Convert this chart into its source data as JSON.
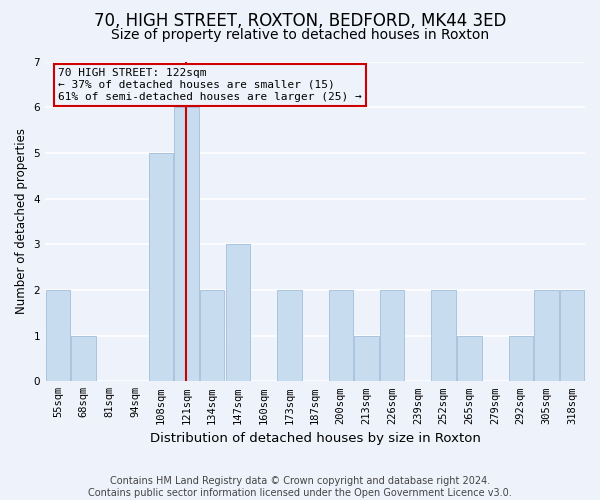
{
  "title": "70, HIGH STREET, ROXTON, BEDFORD, MK44 3ED",
  "subtitle": "Size of property relative to detached houses in Roxton",
  "xlabel": "Distribution of detached houses by size in Roxton",
  "ylabel": "Number of detached properties",
  "bar_color": "#c8dcf0",
  "bar_edge_color": "#aac4de",
  "highlight_line_color": "#cc0000",
  "annotation_text": "70 HIGH STREET: 122sqm\n← 37% of detached houses are smaller (15)\n61% of semi-detached houses are larger (25) →",
  "annotation_box_edge": "#cc0000",
  "categories": [
    "55sqm",
    "68sqm",
    "81sqm",
    "94sqm",
    "108sqm",
    "121sqm",
    "134sqm",
    "147sqm",
    "160sqm",
    "173sqm",
    "187sqm",
    "200sqm",
    "213sqm",
    "226sqm",
    "239sqm",
    "252sqm",
    "265sqm",
    "279sqm",
    "292sqm",
    "305sqm",
    "318sqm"
  ],
  "values": [
    2,
    1,
    0,
    0,
    5,
    6,
    2,
    3,
    0,
    2,
    0,
    2,
    1,
    2,
    0,
    2,
    1,
    0,
    1,
    2,
    2
  ],
  "ylim": [
    0,
    7
  ],
  "yticks": [
    0,
    1,
    2,
    3,
    4,
    5,
    6,
    7
  ],
  "footnote": "Contains HM Land Registry data © Crown copyright and database right 2024.\nContains public sector information licensed under the Open Government Licence v3.0.",
  "bg_color": "#eef2fa",
  "grid_color": "#ffffff",
  "title_fontsize": 12,
  "subtitle_fontsize": 10,
  "xlabel_fontsize": 9.5,
  "ylabel_fontsize": 8.5,
  "tick_fontsize": 7.5,
  "footnote_fontsize": 7
}
